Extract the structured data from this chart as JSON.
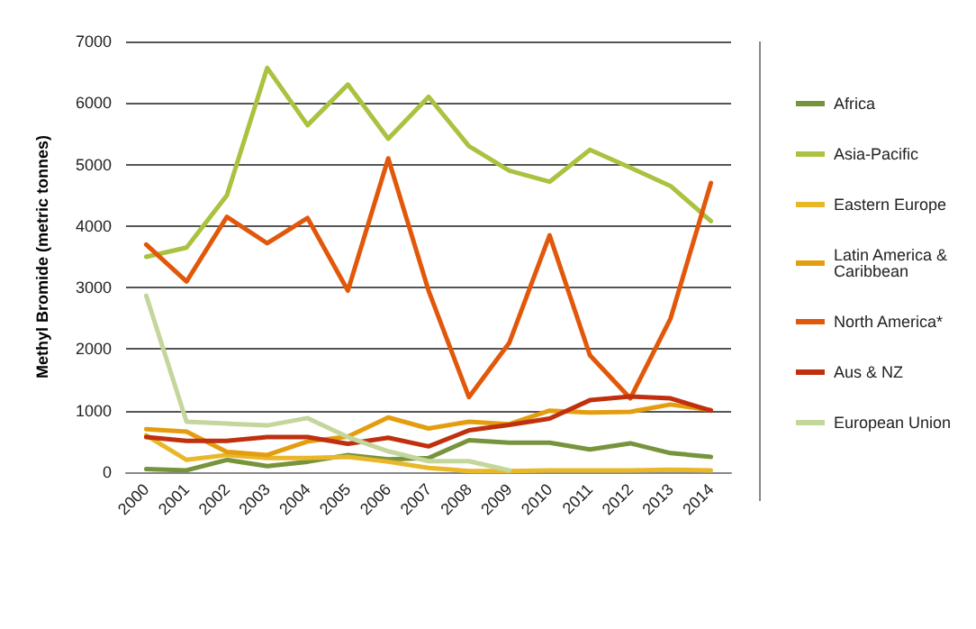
{
  "chart_data": {
    "type": "line",
    "ylabel": "Methyl Bromide (metric tonnes)",
    "categories": [
      "2000",
      "2001",
      "2002",
      "2003",
      "2004",
      "2005",
      "2006",
      "2007",
      "2008",
      "2009",
      "2010",
      "2011",
      "2012",
      "2013",
      "2014"
    ],
    "ylim": [
      0,
      7000
    ],
    "yticks": [
      0,
      1000,
      2000,
      3000,
      4000,
      5000,
      6000,
      7000
    ],
    "grid": "y",
    "legend": "right",
    "marker": "none",
    "line_style": "solid",
    "series": [
      {
        "name": "Africa",
        "color": "#77933c",
        "values": [
          50,
          30,
          200,
          100,
          170,
          280,
          210,
          230,
          520,
          480,
          480,
          370,
          470,
          310,
          250
        ]
      },
      {
        "name": "Asia-Pacific",
        "color": "#a9c23f",
        "values": [
          3500,
          3650,
          4500,
          6570,
          5640,
          6300,
          5420,
          6100,
          5300,
          4900,
          4720,
          5240,
          4950,
          4650,
          4080
        ]
      },
      {
        "name": "Eastern Europe",
        "color": "#e8b828",
        "values": [
          600,
          200,
          280,
          230,
          230,
          250,
          170,
          70,
          20,
          20,
          30,
          30,
          30,
          40,
          30
        ]
      },
      {
        "name": "Latin America & Caribbean",
        "color": "#e39d0f",
        "values": [
          700,
          660,
          330,
          280,
          500,
          580,
          890,
          710,
          820,
          780,
          1000,
          970,
          980,
          1100,
          1010
        ]
      },
      {
        "name": "North America*",
        "color": "#e2580b",
        "values": [
          3700,
          3100,
          4150,
          3720,
          4130,
          2950,
          5100,
          2950,
          1220,
          2100,
          3850,
          1900,
          1200,
          2500,
          4700
        ]
      },
      {
        "name": "Aus & NZ",
        "color": "#c0300e",
        "values": [
          570,
          510,
          510,
          570,
          570,
          460,
          560,
          420,
          680,
          770,
          870,
          1170,
          1230,
          1200,
          1000
        ]
      },
      {
        "name": "European Union",
        "color": "#c3d69b",
        "values": [
          2870,
          820,
          790,
          760,
          880,
          570,
          340,
          180,
          180,
          30,
          null,
          null,
          null,
          null,
          null
        ]
      }
    ]
  }
}
